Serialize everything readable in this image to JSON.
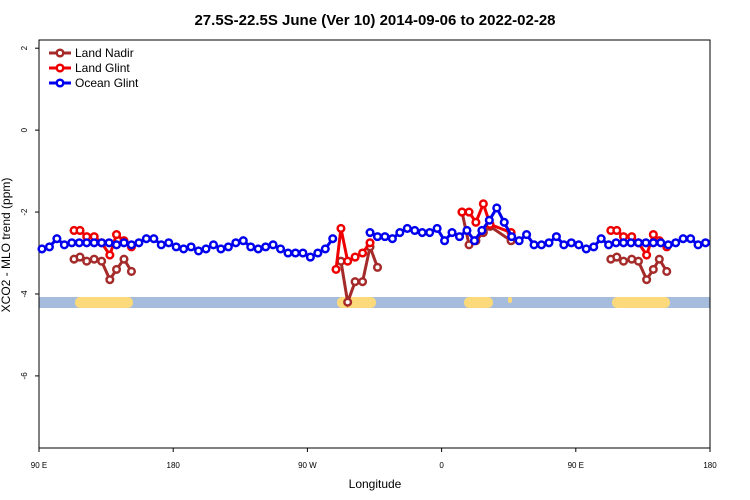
{
  "chart_data": {
    "type": "line",
    "title": "27.5S-22.5S June (Ver 10)   2014-09-06 to 2022-02-28",
    "x_label": "Longitude",
    "y_label": "XCO2 - MLO trend (ppm)",
    "xlim": [
      90,
      540
    ],
    "ylim": [
      -7.76,
      2.2
    ],
    "xticks": [
      {
        "value": 90,
        "label": "90 E"
      },
      {
        "value": 180,
        "label": "180"
      },
      {
        "value": 270,
        "label": "90 W"
      },
      {
        "value": 360,
        "label": "0"
      },
      {
        "value": 450,
        "label": "90 E"
      },
      {
        "value": 540,
        "label": "180"
      }
    ],
    "yticks": [
      -6,
      -4,
      -2,
      0,
      2
    ],
    "legend": "top-left",
    "series": [
      {
        "name": "Land Nadir",
        "color": "#a52a2a",
        "x": [
          113.5,
          117.5,
          122,
          127,
          132,
          137.5,
          142,
          147,
          152,
          200,
          292.5,
          297,
          302,
          307,
          312,
          317,
          340,
          373.7,
          378.4,
          383,
          388,
          392.5,
          406.6,
          420,
          473.5,
          477.5,
          482,
          487.5,
          492,
          497.5,
          502,
          506,
          511
        ],
        "values": [
          -3.15,
          -3.1,
          -3.2,
          -3.15,
          -3.2,
          -3.65,
          -3.4,
          -3.15,
          -3.45,
          null,
          -3.2,
          -4.2,
          -3.7,
          -3.7,
          -2.85,
          -3.35,
          null,
          -2.0,
          -2.8,
          -2.7,
          -2.5,
          -2.35,
          -2.7,
          null,
          -3.15,
          -3.1,
          -3.2,
          -3.15,
          -3.2,
          -3.65,
          -3.4,
          -3.15,
          -3.45
        ]
      },
      {
        "name": "Land Glint",
        "color": "#ee0000",
        "x": [
          113.5,
          117.5,
          122,
          127,
          132,
          137.5,
          142,
          147,
          152,
          200,
          289.2,
          292.5,
          297,
          302,
          307,
          312,
          340,
          373.7,
          378.4,
          383,
          388,
          392.5,
          406.6,
          420,
          473.5,
          477.5,
          482,
          487.5,
          492,
          497.5,
          502,
          506,
          511
        ],
        "values": [
          -2.45,
          -2.45,
          -2.6,
          -2.6,
          -2.75,
          -3.05,
          -2.55,
          -2.7,
          -2.85,
          null,
          -3.4,
          -2.4,
          -3.2,
          -3.1,
          -3.0,
          -2.75,
          null,
          -2.0,
          -2.0,
          -2.25,
          -1.8,
          -2.3,
          -2.5,
          null,
          -2.45,
          -2.45,
          -2.6,
          -2.6,
          -2.75,
          -3.05,
          -2.55,
          -2.7,
          -2.85
        ]
      },
      {
        "name": "Ocean Glint",
        "color": "#0000ee",
        "x": [
          92,
          97,
          102,
          107,
          112,
          117,
          122,
          127,
          132,
          137,
          142,
          147,
          152,
          157,
          162,
          167,
          172,
          177,
          182,
          187,
          192,
          197,
          202,
          207,
          212,
          217,
          222,
          227,
          232,
          237,
          242,
          247,
          252,
          257,
          262,
          267,
          272,
          277,
          282,
          287,
          292,
          297,
          302,
          307,
          312,
          317,
          322,
          327,
          332,
          337,
          342,
          347,
          352,
          357,
          362,
          367,
          372,
          377,
          382,
          387,
          392,
          397,
          402,
          407,
          412,
          417,
          422,
          427,
          432,
          437,
          442,
          447,
          452,
          457,
          462,
          467,
          472,
          477,
          482,
          487,
          492,
          497,
          502,
          507,
          512,
          517,
          522,
          527,
          532,
          537
        ],
        "values": [
          -2.9,
          -2.85,
          -2.65,
          -2.8,
          -2.75,
          -2.75,
          -2.75,
          -2.75,
          -2.75,
          -2.75,
          -2.8,
          -2.75,
          -2.8,
          -2.75,
          -2.65,
          -2.65,
          -2.8,
          -2.75,
          -2.85,
          -2.9,
          -2.85,
          -2.95,
          -2.9,
          -2.8,
          -2.9,
          -2.85,
          -2.75,
          -2.7,
          -2.85,
          -2.9,
          -2.85,
          -2.8,
          -2.9,
          -3.0,
          -3.0,
          -3.0,
          -3.1,
          -3.0,
          -2.9,
          -2.65,
          null,
          null,
          null,
          null,
          -2.5,
          -2.6,
          -2.6,
          -2.65,
          -2.5,
          -2.4,
          -2.45,
          -2.5,
          -2.5,
          -2.4,
          -2.7,
          -2.5,
          -2.6,
          -2.45,
          -2.7,
          -2.45,
          -2.2,
          -1.9,
          -2.25,
          -2.6,
          -2.7,
          -2.55,
          -2.8,
          -2.8,
          -2.75,
          -2.6,
          -2.8,
          -2.75,
          -2.8,
          -2.9,
          -2.85,
          -2.65,
          -2.8,
          -2.75,
          -2.75,
          -2.75,
          -2.75,
          -2.75,
          -2.75,
          -2.75,
          -2.8,
          -2.75,
          -2.65,
          -2.65,
          -2.8,
          -2.75
        ]
      }
    ]
  }
}
